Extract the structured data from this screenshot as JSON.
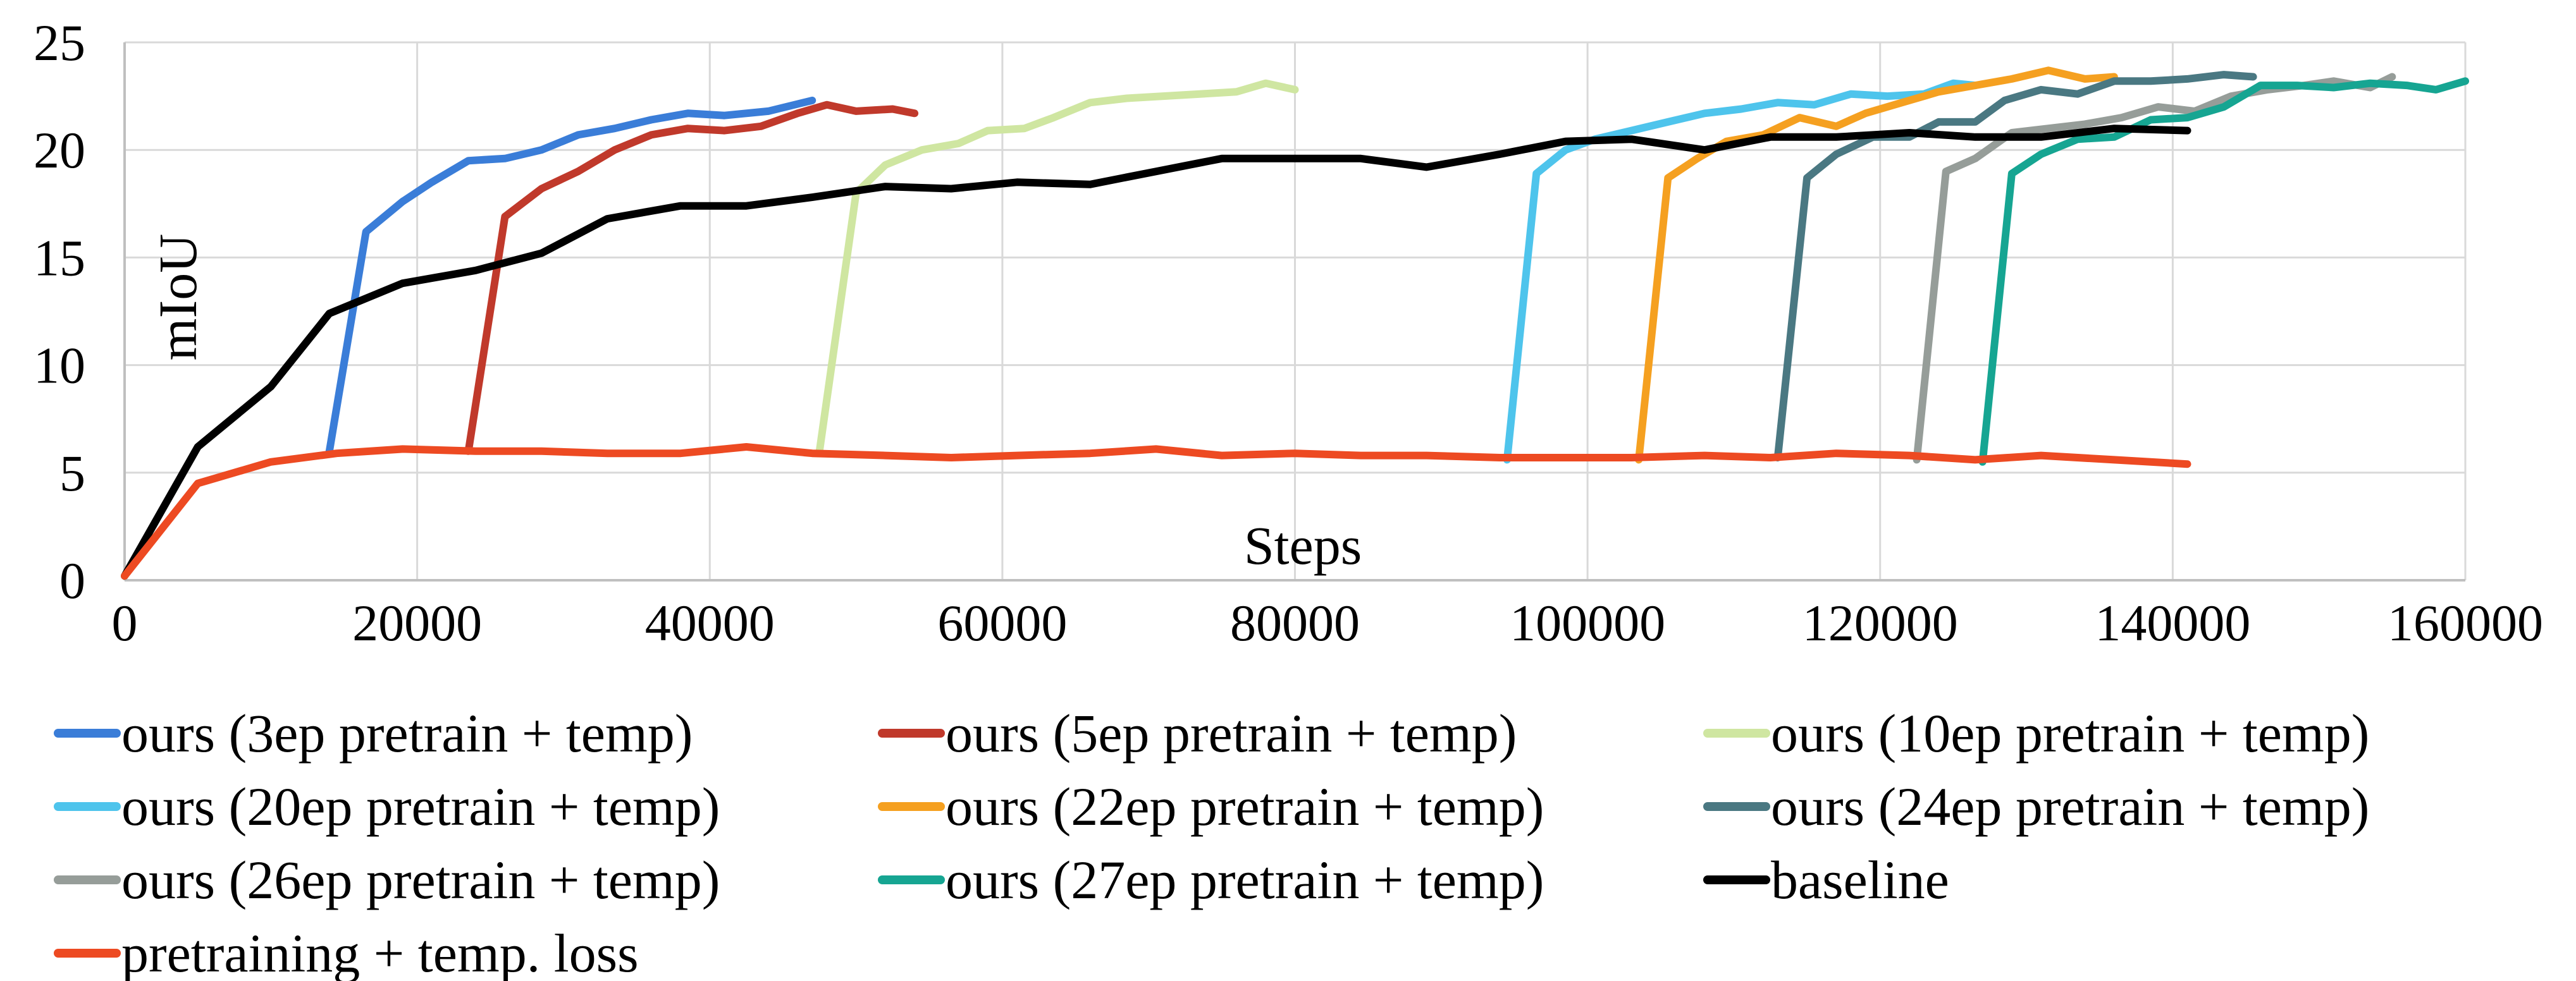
{
  "chart_data": {
    "type": "line",
    "title": "",
    "xlabel": "Steps",
    "ylabel": "mIoU",
    "xlim": [
      0,
      160000
    ],
    "ylim": [
      0,
      25
    ],
    "x_ticks": [
      0,
      20000,
      40000,
      60000,
      80000,
      100000,
      120000,
      140000,
      160000
    ],
    "y_ticks": [
      0,
      5,
      10,
      15,
      20,
      25
    ],
    "x_tick_labels": [
      "0",
      "20000",
      "40000",
      "60000",
      "80000",
      "100000",
      "120000",
      "140000",
      "160000"
    ],
    "y_tick_labels": [
      "0",
      "5",
      "10",
      "15",
      "20",
      "25"
    ],
    "grid": "horizontal-and-vertical",
    "legend_position": "bottom",
    "series": [
      {
        "name": "ours (3ep pretrain + temp)",
        "color": "#3a7dd8",
        "points": [
          [
            14000,
            6.0
          ],
          [
            16500,
            16.2
          ],
          [
            19000,
            17.6
          ],
          [
            21000,
            18.5
          ],
          [
            23500,
            19.5
          ],
          [
            26000,
            19.6
          ],
          [
            28500,
            20.0
          ],
          [
            31000,
            20.7
          ],
          [
            33500,
            21.0
          ],
          [
            36000,
            21.4
          ],
          [
            38500,
            21.7
          ],
          [
            41000,
            21.6
          ],
          [
            44000,
            21.8
          ],
          [
            47000,
            22.3
          ]
        ]
      },
      {
        "name": "ours (5ep pretrain + temp)",
        "color": "#c0392b",
        "points": [
          [
            23500,
            6.0
          ],
          [
            26000,
            16.9
          ],
          [
            28500,
            18.2
          ],
          [
            31000,
            19.0
          ],
          [
            33500,
            20.0
          ],
          [
            36000,
            20.7
          ],
          [
            38500,
            21.0
          ],
          [
            41000,
            20.9
          ],
          [
            43500,
            21.1
          ],
          [
            46000,
            21.7
          ],
          [
            48000,
            22.1
          ],
          [
            50000,
            21.8
          ],
          [
            52500,
            21.9
          ],
          [
            54000,
            21.7
          ]
        ]
      },
      {
        "name": "ours (10ep pretrain + temp)",
        "color": "#cfe6a1",
        "points": [
          [
            47500,
            6.0
          ],
          [
            50000,
            18.0
          ],
          [
            52000,
            19.3
          ],
          [
            54500,
            20.0
          ],
          [
            57000,
            20.3
          ],
          [
            59000,
            20.9
          ],
          [
            61500,
            21.0
          ],
          [
            63500,
            21.5
          ],
          [
            66000,
            22.2
          ],
          [
            68500,
            22.4
          ],
          [
            71000,
            22.5
          ],
          [
            73500,
            22.6
          ],
          [
            76000,
            22.7
          ],
          [
            78000,
            23.1
          ],
          [
            80000,
            22.8
          ]
        ]
      },
      {
        "name": "ours (20ep pretrain + temp)",
        "color": "#4ec4ec",
        "points": [
          [
            94500,
            5.6
          ],
          [
            96500,
            18.9
          ],
          [
            98500,
            20.0
          ],
          [
            100500,
            20.5
          ],
          [
            103000,
            20.9
          ],
          [
            105500,
            21.3
          ],
          [
            108000,
            21.7
          ],
          [
            110500,
            21.9
          ],
          [
            113000,
            22.2
          ],
          [
            115500,
            22.1
          ],
          [
            118000,
            22.6
          ],
          [
            120500,
            22.5
          ],
          [
            123000,
            22.6
          ],
          [
            125000,
            23.1
          ],
          [
            126500,
            23.0
          ]
        ]
      },
      {
        "name": "ours (22ep pretrain + temp)",
        "color": "#f5a020",
        "points": [
          [
            103500,
            5.6
          ],
          [
            105500,
            18.7
          ],
          [
            107500,
            19.6
          ],
          [
            109500,
            20.4
          ],
          [
            112000,
            20.7
          ],
          [
            114500,
            21.5
          ],
          [
            117000,
            21.1
          ],
          [
            119000,
            21.7
          ],
          [
            121500,
            22.2
          ],
          [
            124000,
            22.7
          ],
          [
            126500,
            23.0
          ],
          [
            129000,
            23.3
          ],
          [
            131500,
            23.7
          ],
          [
            134000,
            23.3
          ],
          [
            136000,
            23.4
          ]
        ]
      },
      {
        "name": "ours (24ep pretrain + temp)",
        "color": "#4a7882",
        "points": [
          [
            113000,
            5.7
          ],
          [
            115000,
            18.7
          ],
          [
            117000,
            19.8
          ],
          [
            119500,
            20.6
          ],
          [
            122000,
            20.6
          ],
          [
            124000,
            21.3
          ],
          [
            126500,
            21.3
          ],
          [
            128500,
            22.3
          ],
          [
            131000,
            22.8
          ],
          [
            133500,
            22.6
          ],
          [
            136000,
            23.2
          ],
          [
            138500,
            23.2
          ],
          [
            141000,
            23.3
          ],
          [
            143500,
            23.5
          ],
          [
            145500,
            23.4
          ]
        ]
      },
      {
        "name": "ours (26ep pretrain + temp)",
        "color": "#969d99",
        "points": [
          [
            122500,
            5.6
          ],
          [
            124500,
            19.0
          ],
          [
            126500,
            19.6
          ],
          [
            129000,
            20.8
          ],
          [
            131500,
            21.0
          ],
          [
            134000,
            21.2
          ],
          [
            136500,
            21.5
          ],
          [
            139000,
            22.0
          ],
          [
            141500,
            21.8
          ],
          [
            144000,
            22.5
          ],
          [
            146500,
            22.8
          ],
          [
            149000,
            23.0
          ],
          [
            151000,
            23.2
          ],
          [
            153500,
            22.9
          ],
          [
            155000,
            23.4
          ]
        ]
      },
      {
        "name": "ours (27ep pretrain + temp)",
        "color": "#16a592",
        "points": [
          [
            127000,
            5.5
          ],
          [
            129000,
            18.9
          ],
          [
            131000,
            19.8
          ],
          [
            133500,
            20.5
          ],
          [
            136000,
            20.6
          ],
          [
            138500,
            21.4
          ],
          [
            141000,
            21.5
          ],
          [
            143500,
            22.0
          ],
          [
            146000,
            23.0
          ],
          [
            148500,
            23.0
          ],
          [
            151000,
            22.9
          ],
          [
            153500,
            23.1
          ],
          [
            156000,
            23.0
          ],
          [
            158000,
            22.8
          ],
          [
            160000,
            23.2
          ]
        ]
      },
      {
        "name": "baseline",
        "color": "#000000",
        "points": [
          [
            0,
            0.2
          ],
          [
            5000,
            6.2
          ],
          [
            10000,
            9.0
          ],
          [
            14000,
            12.4
          ],
          [
            19000,
            13.8
          ],
          [
            24000,
            14.4
          ],
          [
            28500,
            15.2
          ],
          [
            33000,
            16.8
          ],
          [
            38000,
            17.4
          ],
          [
            42500,
            17.4
          ],
          [
            47000,
            17.8
          ],
          [
            52000,
            18.3
          ],
          [
            56500,
            18.2
          ],
          [
            61000,
            18.5
          ],
          [
            66000,
            18.4
          ],
          [
            70500,
            19.0
          ],
          [
            75000,
            19.6
          ],
          [
            80000,
            19.6
          ],
          [
            84500,
            19.6
          ],
          [
            89000,
            19.2
          ],
          [
            94000,
            19.8
          ],
          [
            98500,
            20.4
          ],
          [
            103000,
            20.5
          ],
          [
            108000,
            20.0
          ],
          [
            112500,
            20.6
          ],
          [
            117000,
            20.6
          ],
          [
            122000,
            20.8
          ],
          [
            126500,
            20.6
          ],
          [
            131000,
            20.6
          ],
          [
            136000,
            21.0
          ],
          [
            141000,
            20.9
          ]
        ]
      },
      {
        "name": "pretraining + temp. loss",
        "color": "#ed4a22",
        "points": [
          [
            0,
            0.2
          ],
          [
            5000,
            4.5
          ],
          [
            10000,
            5.5
          ],
          [
            14500,
            5.9
          ],
          [
            19000,
            6.1
          ],
          [
            24000,
            6.0
          ],
          [
            28500,
            6.0
          ],
          [
            33000,
            5.9
          ],
          [
            38000,
            5.9
          ],
          [
            42500,
            6.2
          ],
          [
            47000,
            5.9
          ],
          [
            52000,
            5.8
          ],
          [
            56500,
            5.7
          ],
          [
            61000,
            5.8
          ],
          [
            66000,
            5.9
          ],
          [
            70500,
            6.1
          ],
          [
            75000,
            5.8
          ],
          [
            80000,
            5.9
          ],
          [
            84500,
            5.8
          ],
          [
            89000,
            5.8
          ],
          [
            94000,
            5.7
          ],
          [
            98500,
            5.7
          ],
          [
            103000,
            5.7
          ],
          [
            108000,
            5.8
          ],
          [
            112500,
            5.7
          ],
          [
            117000,
            5.9
          ],
          [
            122000,
            5.8
          ],
          [
            126500,
            5.6
          ],
          [
            131000,
            5.8
          ],
          [
            136000,
            5.6
          ],
          [
            141000,
            5.4
          ]
        ]
      }
    ]
  }
}
